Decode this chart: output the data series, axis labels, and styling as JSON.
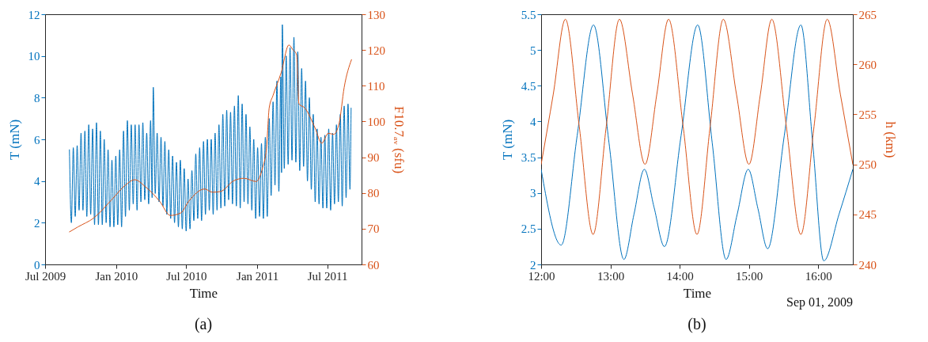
{
  "chart_data": [
    {
      "type": "line",
      "xlabel": "Time",
      "ylabel": "T (mN)",
      "y2label": "F10.7ₐᵥ (sfu)",
      "annotations": [
        "(a)"
      ],
      "xlim": [
        "2009-07-01",
        "2011-09-28"
      ],
      "xticks": [
        {
          "value": "2009-07-01",
          "label": "Jul 2009"
        },
        {
          "value": "2010-01-01",
          "label": "Jan 2010"
        },
        {
          "value": "2010-07-01",
          "label": "Jul 2010"
        },
        {
          "value": "2011-01-01",
          "label": "Jan 2011"
        },
        {
          "value": "2011-07-01",
          "label": "Jul 2011"
        }
      ],
      "ylim": [
        0,
        12
      ],
      "yticks": [
        0,
        2,
        4,
        6,
        8,
        10,
        12
      ],
      "y2lim": [
        60,
        130
      ],
      "y2ticks": [
        60,
        70,
        80,
        90,
        100,
        110,
        120,
        130
      ],
      "series": [
        {
          "color": "#0072bd",
          "x": [
            "2009-09-02",
            "2009-09-07",
            "2009-09-12",
            "2009-09-17",
            "2009-09-22",
            "2009-09-27",
            "2009-10-02",
            "2009-10-07",
            "2009-10-12",
            "2009-10-17",
            "2009-10-22",
            "2009-10-27",
            "2009-11-01",
            "2009-11-06",
            "2009-11-11",
            "2009-11-16",
            "2009-11-21",
            "2009-11-26",
            "2009-12-01",
            "2009-12-06",
            "2009-12-11",
            "2009-12-16",
            "2009-12-21",
            "2009-12-26",
            "2009-12-31",
            "2010-01-05",
            "2010-01-10",
            "2010-01-15",
            "2010-01-20",
            "2010-01-25",
            "2010-01-30",
            "2010-02-04",
            "2010-02-09",
            "2010-02-14",
            "2010-02-19",
            "2010-02-24",
            "2010-03-01",
            "2010-03-06",
            "2010-03-11",
            "2010-03-16",
            "2010-03-21",
            "2010-03-26",
            "2010-03-31",
            "2010-04-04",
            "2010-04-07",
            "2010-04-12",
            "2010-04-17",
            "2010-04-22",
            "2010-04-27",
            "2010-05-02",
            "2010-05-07",
            "2010-05-12",
            "2010-05-17",
            "2010-05-22",
            "2010-05-27",
            "2010-06-01",
            "2010-06-06",
            "2010-06-11",
            "2010-06-16",
            "2010-06-21",
            "2010-06-26",
            "2010-07-01",
            "2010-07-06",
            "2010-07-11",
            "2010-07-16",
            "2010-07-21",
            "2010-07-26",
            "2010-07-31",
            "2010-08-05",
            "2010-08-10",
            "2010-08-15",
            "2010-08-20",
            "2010-08-25",
            "2010-08-30",
            "2010-09-04",
            "2010-09-09",
            "2010-09-14",
            "2010-09-19",
            "2010-09-24",
            "2010-09-29",
            "2010-10-04",
            "2010-10-09",
            "2010-10-14",
            "2010-10-19",
            "2010-10-24",
            "2010-10-29",
            "2010-11-03",
            "2010-11-08",
            "2010-11-13",
            "2010-11-18",
            "2010-11-23",
            "2010-11-28",
            "2010-12-03",
            "2010-12-08",
            "2010-12-13",
            "2010-12-18",
            "2010-12-23",
            "2010-12-28",
            "2011-01-02",
            "2011-01-07",
            "2011-01-12",
            "2011-01-17",
            "2011-01-22",
            "2011-01-27",
            "2011-02-01",
            "2011-02-06",
            "2011-02-11",
            "2011-02-16",
            "2011-02-21",
            "2011-02-26",
            "2011-03-03",
            "2011-03-05",
            "2011-03-07",
            "2011-03-12",
            "2011-03-17",
            "2011-03-22",
            "2011-03-27",
            "2011-04-01",
            "2011-04-06",
            "2011-04-11",
            "2011-04-16",
            "2011-04-21",
            "2011-04-26",
            "2011-05-01",
            "2011-05-06",
            "2011-05-11",
            "2011-05-16",
            "2011-05-21",
            "2011-05-26",
            "2011-05-31",
            "2011-06-05",
            "2011-06-10",
            "2011-06-15",
            "2011-06-20",
            "2011-06-25",
            "2011-06-30",
            "2011-07-05",
            "2011-07-10",
            "2011-07-15",
            "2011-07-20",
            "2011-07-25",
            "2011-07-30",
            "2011-08-04",
            "2011-08-09",
            "2011-08-14",
            "2011-08-19",
            "2011-08-24",
            "2011-08-29",
            "2011-09-01"
          ],
          "values": [
            5.5,
            2.0,
            5.6,
            2.3,
            5.7,
            2.6,
            6.3,
            2.6,
            6.4,
            2.3,
            6.7,
            2.4,
            6.5,
            1.9,
            6.8,
            1.9,
            6.4,
            1.9,
            6.0,
            2.0,
            5.5,
            1.8,
            5.0,
            1.8,
            5.2,
            1.9,
            5.5,
            1.8,
            6.4,
            2.3,
            6.9,
            2.6,
            6.7,
            2.9,
            6.7,
            2.6,
            6.7,
            3.0,
            6.8,
            3.1,
            6.3,
            2.9,
            6.9,
            3.2,
            8.5,
            3.4,
            6.3,
            3.0,
            6.1,
            2.8,
            5.9,
            2.4,
            5.5,
            2.2,
            5.2,
            2.0,
            4.9,
            1.8,
            5.0,
            1.7,
            4.6,
            1.6,
            4.1,
            1.7,
            4.5,
            2.1,
            5.3,
            2.2,
            5.6,
            2.1,
            5.9,
            2.4,
            6.0,
            2.6,
            6.0,
            2.4,
            6.3,
            2.6,
            6.7,
            2.7,
            7.2,
            2.8,
            7.4,
            3.1,
            7.3,
            2.9,
            7.6,
            2.8,
            8.1,
            2.7,
            7.7,
            3.0,
            7.2,
            2.9,
            6.6,
            2.6,
            6.0,
            2.2,
            5.6,
            2.3,
            5.8,
            2.2,
            6.1,
            2.3,
            7.0,
            3.3,
            7.8,
            3.8,
            8.8,
            3.5,
            9.0,
            4.4,
            11.5,
            4.6,
            10.0,
            4.8,
            10.4,
            5.0,
            10.9,
            4.9,
            10.2,
            4.5,
            9.4,
            4.7,
            8.8,
            4.0,
            8.0,
            3.6,
            7.2,
            3.0,
            6.5,
            2.9,
            6.1,
            2.7,
            6.2,
            2.7,
            6.5,
            2.6,
            6.3,
            2.9,
            6.7,
            3.0,
            7.2,
            2.8,
            7.6,
            3.2,
            7.7,
            3.6,
            7.5
          ]
        },
        {
          "color": "#d95319",
          "axis": "y2",
          "x": [
            "2009-09-02",
            "2009-09-24",
            "2009-11-04",
            "2009-12-22",
            "2010-01-25",
            "2010-02-18",
            "2010-03-17",
            "2010-04-24",
            "2010-05-21",
            "2010-06-17",
            "2010-07-08",
            "2010-08-18",
            "2010-09-07",
            "2010-09-28",
            "2010-11-01",
            "2010-11-28",
            "2010-12-29",
            "2011-01-15",
            "2011-01-25",
            "2011-02-01",
            "2011-02-11",
            "2011-03-04",
            "2011-03-24",
            "2011-04-03",
            "2011-04-13",
            "2011-04-19",
            "2011-05-04",
            "2011-05-31",
            "2011-06-17",
            "2011-07-04",
            "2011-07-18",
            "2011-08-01",
            "2011-08-14",
            "2011-09-02"
          ],
          "values": [
            69.1,
            70.5,
            73.0,
            78.3,
            82.2,
            83.7,
            81.8,
            77.6,
            73.7,
            74.4,
            77.7,
            81.1,
            80.2,
            80.4,
            83.4,
            84.1,
            83.2,
            87.1,
            92.5,
            103.8,
            107.3,
            113.7,
            121.4,
            120.1,
            118.7,
            104.9,
            103.8,
            98.1,
            93.9,
            96.7,
            96.4,
            99.5,
            109.5,
            117.3
          ]
        }
      ]
    },
    {
      "type": "line",
      "xlabel": "Time",
      "ylabel": "T (mN)",
      "y2label": "h (km)",
      "annotations": [
        "Sep 01, 2009",
        "(b)"
      ],
      "xlim": [
        12,
        16.5
      ],
      "xticks": [
        {
          "value": 12,
          "label": "12:00"
        },
        {
          "value": 13,
          "label": "13:00"
        },
        {
          "value": 14,
          "label": "14:00"
        },
        {
          "value": 15,
          "label": "15:00"
        },
        {
          "value": 16,
          "label": "16:00"
        }
      ],
      "ylim": [
        2,
        5.5
      ],
      "yticks": [
        2,
        2.5,
        3,
        3.5,
        4,
        4.5,
        5,
        5.5
      ],
      "y2lim": [
        240,
        265
      ],
      "y2ticks": [
        240,
        245,
        250,
        255,
        260,
        265
      ],
      "series": [
        {
          "color": "#0072bd",
          "x": [
            12.0,
            12.29,
            12.52,
            12.756,
            12.98,
            13.195,
            13.34,
            13.49,
            13.63,
            13.78,
            14.02,
            14.26,
            14.47,
            14.67,
            14.83,
            14.99,
            15.13,
            15.27,
            15.51,
            15.75,
            15.92,
            16.08,
            16.3,
            16.5
          ],
          "values": [
            3.33,
            2.27,
            3.8,
            5.35,
            3.7,
            2.07,
            2.7,
            3.33,
            2.8,
            2.25,
            3.8,
            5.35,
            3.7,
            2.07,
            2.7,
            3.33,
            2.78,
            2.22,
            3.8,
            5.35,
            3.7,
            2.05,
            2.7,
            3.33
          ]
        },
        {
          "color": "#d95319",
          "axis": "y2",
          "x": [
            12.0,
            12.175,
            12.35,
            12.55,
            12.75,
            12.94,
            13.13,
            13.32,
            13.5,
            13.67,
            13.84,
            14.05,
            14.25,
            14.44,
            14.63,
            14.82,
            15.0,
            15.165,
            15.33,
            15.54,
            15.75,
            15.94,
            16.13,
            16.32,
            16.5
          ],
          "values": [
            250,
            257,
            264.5,
            253.8,
            243,
            253.8,
            264.5,
            257,
            250,
            257,
            264.5,
            253.8,
            243,
            253.8,
            264.5,
            257,
            250,
            257,
            264.5,
            253.8,
            243,
            253.8,
            264.5,
            257,
            250
          ]
        }
      ]
    }
  ]
}
